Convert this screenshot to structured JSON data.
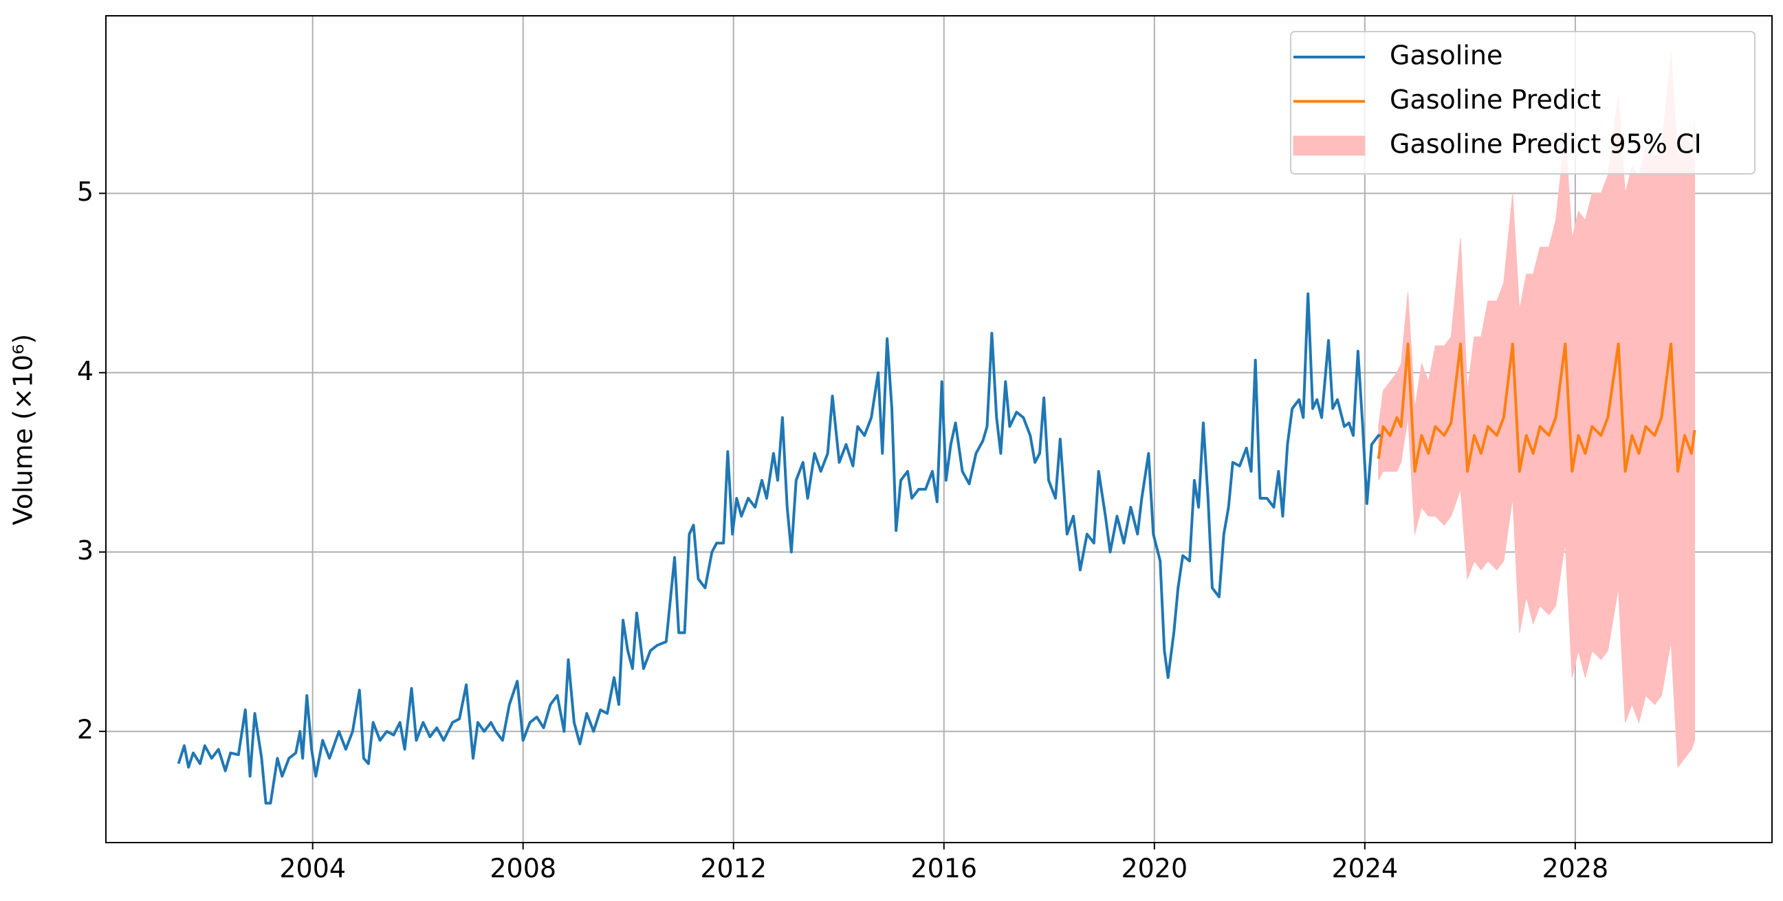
{
  "chart_data": {
    "type": "line",
    "y_label": "Volume (×10⁶)",
    "xlim": [
      2000.07,
      2031.74
    ],
    "ylim": [
      1.38,
      5.99
    ],
    "xticks": [
      2004,
      2008,
      2012,
      2016,
      2020,
      2024,
      2028
    ],
    "yticks": [
      2,
      3,
      4,
      5
    ],
    "grid": true,
    "legend_position": "upper right",
    "series": [
      {
        "name": "Gasoline",
        "color": "#1f77b4",
        "x": [
          2001.45,
          2001.56,
          2001.64,
          2001.73,
          2001.86,
          2001.95,
          2002.08,
          2002.21,
          2002.34,
          2002.44,
          2002.59,
          2002.72,
          2002.81,
          2002.9,
          2003.03,
          2003.11,
          2003.2,
          2003.33,
          2003.42,
          2003.55,
          2003.68,
          2003.76,
          2003.81,
          2003.89,
          2003.98,
          2004.06,
          2004.19,
          2004.32,
          2004.5,
          2004.63,
          2004.76,
          2004.89,
          2004.97,
          2005.06,
          2005.15,
          2005.28,
          2005.41,
          2005.54,
          2005.66,
          2005.75,
          2005.88,
          2005.97,
          2006.1,
          2006.23,
          2006.36,
          2006.49,
          2006.66,
          2006.79,
          2006.92,
          2007.05,
          2007.14,
          2007.26,
          2007.39,
          2007.48,
          2007.61,
          2007.74,
          2007.89,
          2008.0,
          2008.13,
          2008.26,
          2008.39,
          2008.52,
          2008.65,
          2008.78,
          2008.86,
          2008.97,
          2009.08,
          2009.21,
          2009.34,
          2009.47,
          2009.6,
          2009.73,
          2009.82,
          2009.9,
          2009.99,
          2010.08,
          2010.16,
          2010.29,
          2010.42,
          2010.55,
          2010.72,
          2010.88,
          2010.96,
          2011.07,
          2011.16,
          2011.24,
          2011.33,
          2011.46,
          2011.59,
          2011.68,
          2011.81,
          2011.89,
          2011.98,
          2012.06,
          2012.15,
          2012.28,
          2012.41,
          2012.54,
          2012.63,
          2012.76,
          2012.84,
          2012.93,
          2013.02,
          2013.1,
          2013.19,
          2013.32,
          2013.41,
          2013.54,
          2013.66,
          2013.79,
          2013.88,
          2014.01,
          2014.14,
          2014.27,
          2014.36,
          2014.49,
          2014.62,
          2014.75,
          2014.83,
          2014.92,
          2015.01,
          2015.09,
          2015.18,
          2015.31,
          2015.39,
          2015.52,
          2015.65,
          2015.78,
          2015.87,
          2015.96,
          2016.04,
          2016.13,
          2016.22,
          2016.35,
          2016.48,
          2016.61,
          2016.74,
          2016.82,
          2016.91,
          2017.0,
          2017.08,
          2017.17,
          2017.25,
          2017.38,
          2017.51,
          2017.64,
          2017.73,
          2017.82,
          2017.9,
          2017.99,
          2018.12,
          2018.21,
          2018.34,
          2018.46,
          2018.59,
          2018.72,
          2018.85,
          2018.94,
          2019.07,
          2019.16,
          2019.29,
          2019.42,
          2019.55,
          2019.68,
          2019.76,
          2019.89,
          2019.98,
          2020.11,
          2020.19,
          2020.26,
          2020.37,
          2020.45,
          2020.54,
          2020.67,
          2020.76,
          2020.84,
          2020.93,
          2021.02,
          2021.1,
          2021.23,
          2021.32,
          2021.41,
          2021.49,
          2021.62,
          2021.75,
          2021.84,
          2021.92,
          2022.01,
          2022.14,
          2022.27,
          2022.36,
          2022.44,
          2022.53,
          2022.62,
          2022.75,
          2022.83,
          2022.92,
          2023.01,
          2023.09,
          2023.18,
          2023.31,
          2023.39,
          2023.48,
          2023.61,
          2023.7,
          2023.78,
          2023.87,
          2023.96,
          2024.04,
          2024.13,
          2024.26,
          2024.35
        ],
        "values": [
          1.82,
          1.92,
          1.8,
          1.88,
          1.82,
          1.92,
          1.85,
          1.9,
          1.78,
          1.88,
          1.87,
          2.12,
          1.75,
          2.1,
          1.85,
          1.6,
          1.6,
          1.85,
          1.75,
          1.85,
          1.88,
          2.0,
          1.85,
          2.2,
          1.9,
          1.75,
          1.95,
          1.85,
          2.0,
          1.9,
          2.0,
          2.23,
          1.85,
          1.82,
          2.05,
          1.95,
          2.0,
          1.98,
          2.05,
          1.9,
          2.24,
          1.95,
          2.05,
          1.97,
          2.02,
          1.95,
          2.05,
          2.07,
          2.26,
          1.85,
          2.05,
          2.0,
          2.05,
          2.0,
          1.95,
          2.15,
          2.28,
          1.95,
          2.05,
          2.08,
          2.02,
          2.15,
          2.2,
          2.0,
          2.4,
          2.05,
          1.93,
          2.1,
          2.0,
          2.12,
          2.1,
          2.3,
          2.15,
          2.62,
          2.45,
          2.35,
          2.66,
          2.35,
          2.45,
          2.48,
          2.5,
          2.97,
          2.55,
          2.55,
          3.1,
          3.15,
          2.85,
          2.8,
          3.0,
          3.05,
          3.05,
          3.56,
          3.1,
          3.3,
          3.2,
          3.3,
          3.25,
          3.4,
          3.3,
          3.55,
          3.4,
          3.75,
          3.25,
          3.0,
          3.4,
          3.5,
          3.3,
          3.55,
          3.45,
          3.55,
          3.87,
          3.5,
          3.6,
          3.48,
          3.7,
          3.65,
          3.75,
          4.0,
          3.55,
          4.19,
          3.8,
          3.12,
          3.4,
          3.45,
          3.3,
          3.35,
          3.35,
          3.45,
          3.28,
          3.95,
          3.4,
          3.6,
          3.72,
          3.45,
          3.38,
          3.55,
          3.62,
          3.7,
          4.22,
          3.75,
          3.55,
          3.95,
          3.7,
          3.78,
          3.75,
          3.65,
          3.5,
          3.55,
          3.86,
          3.4,
          3.3,
          3.63,
          3.1,
          3.2,
          2.9,
          3.1,
          3.05,
          3.45,
          3.2,
          3.0,
          3.2,
          3.05,
          3.25,
          3.1,
          3.3,
          3.55,
          3.1,
          2.95,
          2.45,
          2.3,
          2.55,
          2.8,
          2.98,
          2.95,
          3.4,
          3.25,
          3.72,
          3.3,
          2.8,
          2.75,
          3.1,
          3.25,
          3.5,
          3.48,
          3.58,
          3.45,
          4.07,
          3.3,
          3.3,
          3.25,
          3.45,
          3.2,
          3.6,
          3.8,
          3.85,
          3.75,
          4.44,
          3.8,
          3.85,
          3.75,
          4.18,
          3.8,
          3.85,
          3.7,
          3.72,
          3.65,
          4.12,
          3.7,
          3.27,
          3.6,
          3.65,
          3.65
        ]
      },
      {
        "name": "Gasoline Predict",
        "color": "#ff7f0e",
        "x": [
          2024.26,
          2024.35,
          2024.48,
          2024.61,
          2024.69,
          2024.82,
          2024.95,
          2025.08,
          2025.21,
          2025.34,
          2025.51,
          2025.64,
          2025.82,
          2025.95,
          2026.08,
          2026.21,
          2026.34,
          2026.51,
          2026.64,
          2026.81,
          2026.94,
          2027.07,
          2027.2,
          2027.33,
          2027.5,
          2027.63,
          2027.81,
          2027.94,
          2028.06,
          2028.19,
          2028.32,
          2028.49,
          2028.62,
          2028.82,
          2028.95,
          2029.08,
          2029.21,
          2029.34,
          2029.51,
          2029.64,
          2029.82,
          2029.95,
          2030.08,
          2030.21,
          2030.27
        ],
        "values": [
          3.52,
          3.7,
          3.65,
          3.75,
          3.7,
          4.16,
          3.45,
          3.65,
          3.55,
          3.7,
          3.65,
          3.72,
          4.16,
          3.45,
          3.65,
          3.55,
          3.7,
          3.65,
          3.75,
          4.16,
          3.45,
          3.65,
          3.55,
          3.7,
          3.65,
          3.75,
          4.16,
          3.45,
          3.65,
          3.55,
          3.7,
          3.65,
          3.75,
          4.16,
          3.45,
          3.65,
          3.55,
          3.7,
          3.65,
          3.75,
          4.16,
          3.45,
          3.65,
          3.55,
          3.68
        ]
      },
      {
        "name": "Gasoline Predict 95% CI",
        "color": "#ffbdbd",
        "kind": "band",
        "x": [
          2024.26,
          2024.35,
          2024.48,
          2024.61,
          2024.69,
          2024.82,
          2024.95,
          2025.08,
          2025.21,
          2025.34,
          2025.51,
          2025.64,
          2025.82,
          2025.95,
          2026.08,
          2026.21,
          2026.34,
          2026.51,
          2026.64,
          2026.81,
          2026.94,
          2027.07,
          2027.2,
          2027.33,
          2027.5,
          2027.63,
          2027.81,
          2027.94,
          2028.06,
          2028.19,
          2028.32,
          2028.49,
          2028.62,
          2028.82,
          2028.95,
          2029.08,
          2029.21,
          2029.34,
          2029.51,
          2029.64,
          2029.82,
          2029.95,
          2030.08,
          2030.21,
          2030.27
        ],
        "lower": [
          3.4,
          3.45,
          3.45,
          3.45,
          3.5,
          3.75,
          3.1,
          3.25,
          3.2,
          3.2,
          3.15,
          3.2,
          3.35,
          2.85,
          2.95,
          2.9,
          2.95,
          2.9,
          2.95,
          3.3,
          2.55,
          2.75,
          2.6,
          2.7,
          2.65,
          2.7,
          3.05,
          2.3,
          2.45,
          2.3,
          2.45,
          2.4,
          2.45,
          2.8,
          2.05,
          2.15,
          2.05,
          2.2,
          2.15,
          2.2,
          2.5,
          1.8,
          1.85,
          1.9,
          1.95
        ],
        "upper": [
          3.7,
          3.9,
          3.95,
          4.0,
          4.05,
          4.45,
          3.8,
          4.05,
          3.95,
          4.15,
          4.15,
          4.2,
          4.75,
          3.9,
          4.2,
          4.2,
          4.4,
          4.4,
          4.5,
          5.0,
          4.35,
          4.55,
          4.55,
          4.7,
          4.7,
          4.85,
          5.35,
          4.75,
          4.9,
          4.85,
          5.0,
          5.0,
          5.1,
          5.55,
          5.0,
          5.15,
          5.1,
          5.25,
          5.2,
          5.25,
          5.78,
          5.2,
          5.35,
          5.25,
          5.4
        ]
      }
    ]
  }
}
